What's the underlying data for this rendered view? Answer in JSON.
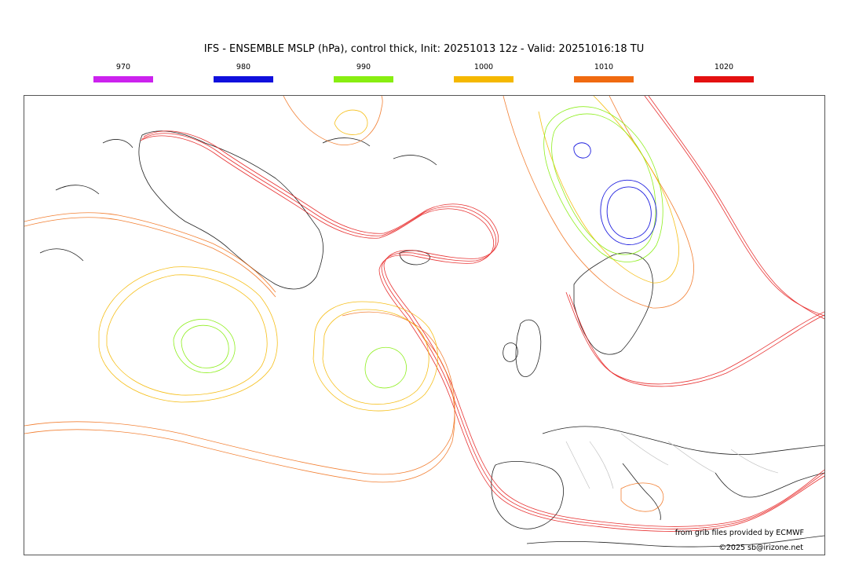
{
  "header": {
    "title": "IFS - ENSEMBLE MSLP (hPa), control thick, Init: 20251013 12z - Valid: 20251016:18 TU"
  },
  "legend": [
    {
      "label": "970",
      "color": "#cc22ee"
    },
    {
      "label": "980",
      "color": "#1010dd"
    },
    {
      "label": "990",
      "color": "#88ee11"
    },
    {
      "label": "1000",
      "color": "#f5b800"
    },
    {
      "label": "1010",
      "color": "#f06a10"
    },
    {
      "label": "1020",
      "color": "#e41010"
    }
  ],
  "footer": {
    "credit": "from grib files provided by ECMWF",
    "copyright": "©2025 sb@irizone.net"
  }
}
